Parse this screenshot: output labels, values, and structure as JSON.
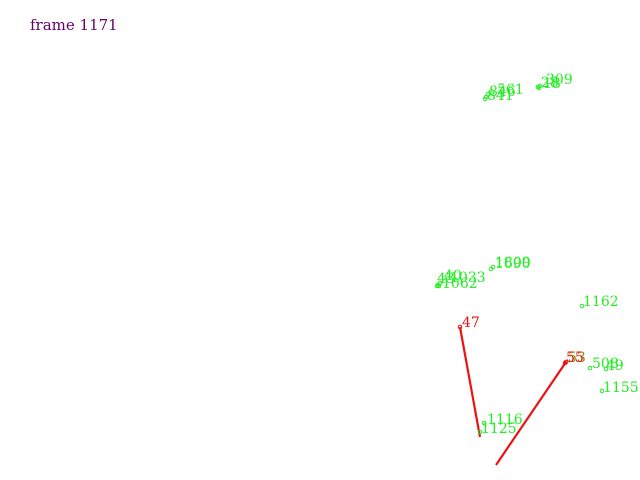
{
  "frame": {
    "label": "frame 1171",
    "color": "#660066"
  },
  "colors": {
    "track_point": "#22ee22",
    "highlight": "#ee1111",
    "overlap_label": "#888800"
  },
  "points": [
    {
      "id": "846",
      "label": "846"
    },
    {
      "id": "841",
      "label": "841"
    },
    {
      "id": "561",
      "label": "561"
    },
    {
      "id": "309",
      "label": "309"
    },
    {
      "id": "28",
      "label": "28"
    },
    {
      "id": "18",
      "label": "18"
    },
    {
      "id": "1690",
      "label": "1690"
    },
    {
      "id": "1809",
      "label": "1809"
    },
    {
      "id": "40",
      "label": "40"
    },
    {
      "id": "1033",
      "label": "1033"
    },
    {
      "id": "43",
      "label": "43"
    },
    {
      "id": "1062",
      "label": "1062"
    },
    {
      "id": "1162",
      "label": "1162"
    },
    {
      "id": "508",
      "label": "508"
    },
    {
      "id": "49",
      "label": "49"
    },
    {
      "id": "1155",
      "label": "1155"
    },
    {
      "id": "1116",
      "label": "1116"
    },
    {
      "id": "1125",
      "label": "1125"
    }
  ],
  "highlighted": [
    {
      "id": "47",
      "label": "47"
    },
    {
      "id": "53",
      "label": "53"
    },
    {
      "id": "55",
      "label": "55"
    }
  ]
}
